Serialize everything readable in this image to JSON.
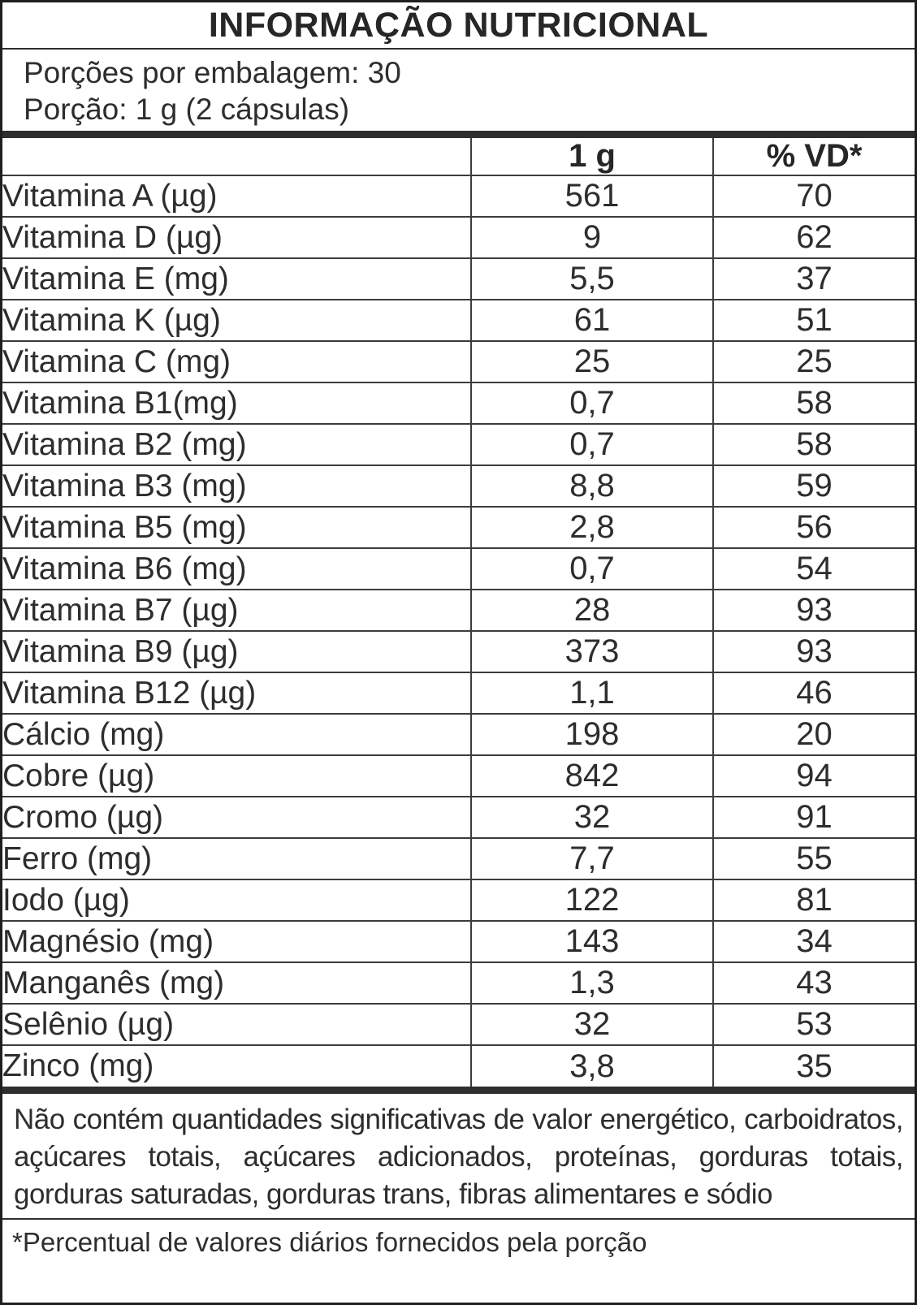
{
  "title": "INFORMAÇÃO NUTRICIONAL",
  "serving_info": {
    "servings_per_package": "Porções por embalagem: 30",
    "serving_size": "Porção: 1 g (2 cápsulas)"
  },
  "table": {
    "columns": {
      "amount": "1 g",
      "daily_value": "% VD*"
    },
    "rows": [
      {
        "label": "Vitamina A (µg)",
        "amount": "561",
        "daily_value": "70"
      },
      {
        "label": "Vitamina D (µg)",
        "amount": "9",
        "daily_value": "62"
      },
      {
        "label": "Vitamina E (mg)",
        "amount": "5,5",
        "daily_value": "37"
      },
      {
        "label": "Vitamina K (µg)",
        "amount": "61",
        "daily_value": "51"
      },
      {
        "label": "Vitamina C (mg)",
        "amount": "25",
        "daily_value": "25"
      },
      {
        "label": "Vitamina B1(mg)",
        "amount": "0,7",
        "daily_value": "58"
      },
      {
        "label": "Vitamina B2 (mg)",
        "amount": "0,7",
        "daily_value": "58"
      },
      {
        "label": "Vitamina B3 (mg)",
        "amount": "8,8",
        "daily_value": "59"
      },
      {
        "label": "Vitamina B5 (mg)",
        "amount": "2,8",
        "daily_value": "56"
      },
      {
        "label": "Vitamina B6 (mg)",
        "amount": "0,7",
        "daily_value": "54"
      },
      {
        "label": "Vitamina B7 (µg)",
        "amount": "28",
        "daily_value": "93"
      },
      {
        "label": "Vitamina B9 (µg)",
        "amount": "373",
        "daily_value": "93"
      },
      {
        "label": "Vitamina B12 (µg)",
        "amount": "1,1",
        "daily_value": "46"
      },
      {
        "label": "Cálcio (mg)",
        "amount": "198",
        "daily_value": "20"
      },
      {
        "label": "Cobre (µg)",
        "amount": "842",
        "daily_value": "94"
      },
      {
        "label": "Cromo (µg)",
        "amount": "32",
        "daily_value": "91"
      },
      {
        "label": "Ferro (mg)",
        "amount": "7,7",
        "daily_value": "55"
      },
      {
        "label": "Iodo (µg)",
        "amount": "122",
        "daily_value": "81"
      },
      {
        "label": "Magnésio (mg)",
        "amount": "143",
        "daily_value": "34"
      },
      {
        "label": "Manganês (mg)",
        "amount": "1,3",
        "daily_value": "43"
      },
      {
        "label": "Selênio (µg)",
        "amount": "32",
        "daily_value": "53"
      },
      {
        "label": "Zinco (mg)",
        "amount": "3,8",
        "daily_value": "35"
      }
    ]
  },
  "footer": {
    "no_significant_amounts": "Não contém quantidades significativas de valor energético, carboidratos, açúcares totais, açúcares adicionados, proteínas, gorduras totais, gorduras saturadas, gorduras trans, fibras alimentares e sódio",
    "daily_value_note": "*Percentual de valores diários fornecidos pela porção"
  },
  "colors": {
    "background": "#ffffff",
    "outer_border": "#1f1f1f",
    "thick_bar": "#2e2e2e",
    "row_divider": "#3c3c3c",
    "text": "#2d2d2d"
  }
}
